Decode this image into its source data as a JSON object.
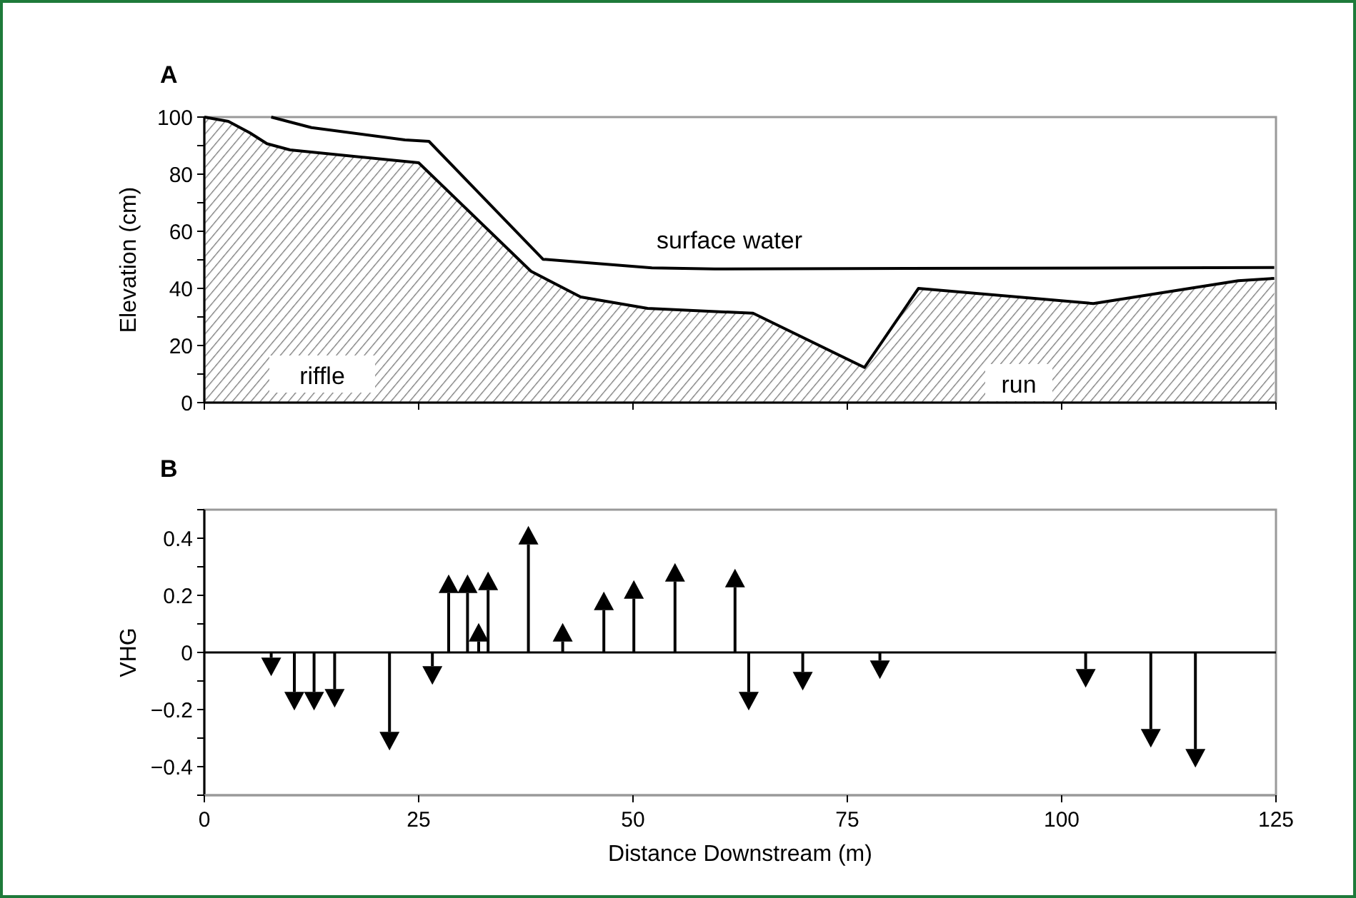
{
  "chart_data": [
    {
      "type": "area",
      "title": "A",
      "ylabel": "Elevation (cm)",
      "xlim": [
        0,
        125
      ],
      "xticks": [
        {
          "value": 0,
          "label": null
        },
        {
          "value": 25,
          "label": null
        },
        {
          "value": 50,
          "label": null
        },
        {
          "value": 75,
          "label": null
        },
        {
          "value": 100,
          "label": null
        },
        {
          "value": 125,
          "label": null
        }
      ],
      "ylim": [
        0,
        100
      ],
      "yticks": [
        0,
        {
          "value": 10,
          "label": null
        },
        20,
        {
          "value": 30,
          "label": null
        },
        40,
        {
          "value": 50,
          "label": null
        },
        60,
        {
          "value": 70,
          "label": null
        },
        80,
        {
          "value": 90,
          "label": null
        },
        100
      ],
      "tick_labels": "y",
      "series": [
        {
          "type": "area",
          "color": "#000000",
          "x": [
            0,
            2.8,
            5.3,
            7.3,
            10,
            25,
            38.1,
            43.9,
            51.7,
            64,
            77,
            83.3,
            103.7,
            120.6,
            124.8
          ],
          "values": [
            100,
            98.5,
            94.5,
            90.7,
            88.5,
            84,
            46,
            37,
            33,
            31.3,
            12.3,
            40,
            34.7,
            42.7,
            43.5
          ]
        },
        {
          "type": "line",
          "color": "#000000",
          "x": [
            7.8,
            12.5,
            23.4,
            26.2,
            39.5,
            52.2,
            59.5,
            124.8
          ],
          "values": [
            100,
            96.3,
            92,
            91.5,
            50.2,
            47.2,
            46.8,
            47.3
          ]
        }
      ],
      "annotations": [
        "riffle",
        "surface water",
        "run"
      ]
    },
    {
      "type": "lollipop",
      "title": "B",
      "xlabel": "Distance Downstream (m)",
      "ylabel": "VHG",
      "marker": "triangle",
      "xlim": [
        0,
        125
      ],
      "xticks": [
        0,
        25,
        50,
        75,
        100,
        125
      ],
      "ylim": [
        -0.5,
        0.5
      ],
      "yticks": [
        {
          "value": -0.5,
          "label": null
        },
        -0.4,
        {
          "value": -0.3,
          "label": null
        },
        -0.2,
        {
          "value": -0.1,
          "label": null
        },
        0,
        {
          "value": 0.1,
          "label": null
        },
        0.2,
        {
          "value": 0.3,
          "label": null
        },
        0.4,
        {
          "value": 0.5,
          "label": null
        }
      ],
      "ref_lines": [
        {
          "axis": "y",
          "value": 0,
          "color": "#000000"
        }
      ],
      "series": [
        {
          "color": "#000000",
          "x": [
            7.8,
            10.5,
            12.8,
            15.2,
            21.6,
            26.6,
            28.5,
            30.7,
            32,
            33.1,
            37.8,
            41.8,
            46.6,
            50.1,
            54.9,
            61.9,
            63.5,
            69.8,
            78.8,
            102.8,
            110.4,
            115.6
          ],
          "values": [
            -0.04,
            -0.16,
            -0.16,
            -0.15,
            -0.3,
            -0.07,
            0.23,
            0.23,
            0.06,
            0.24,
            0.4,
            0.06,
            0.17,
            0.21,
            0.27,
            0.25,
            -0.16,
            -0.09,
            -0.05,
            -0.08,
            -0.29,
            -0.36
          ]
        }
      ]
    }
  ]
}
